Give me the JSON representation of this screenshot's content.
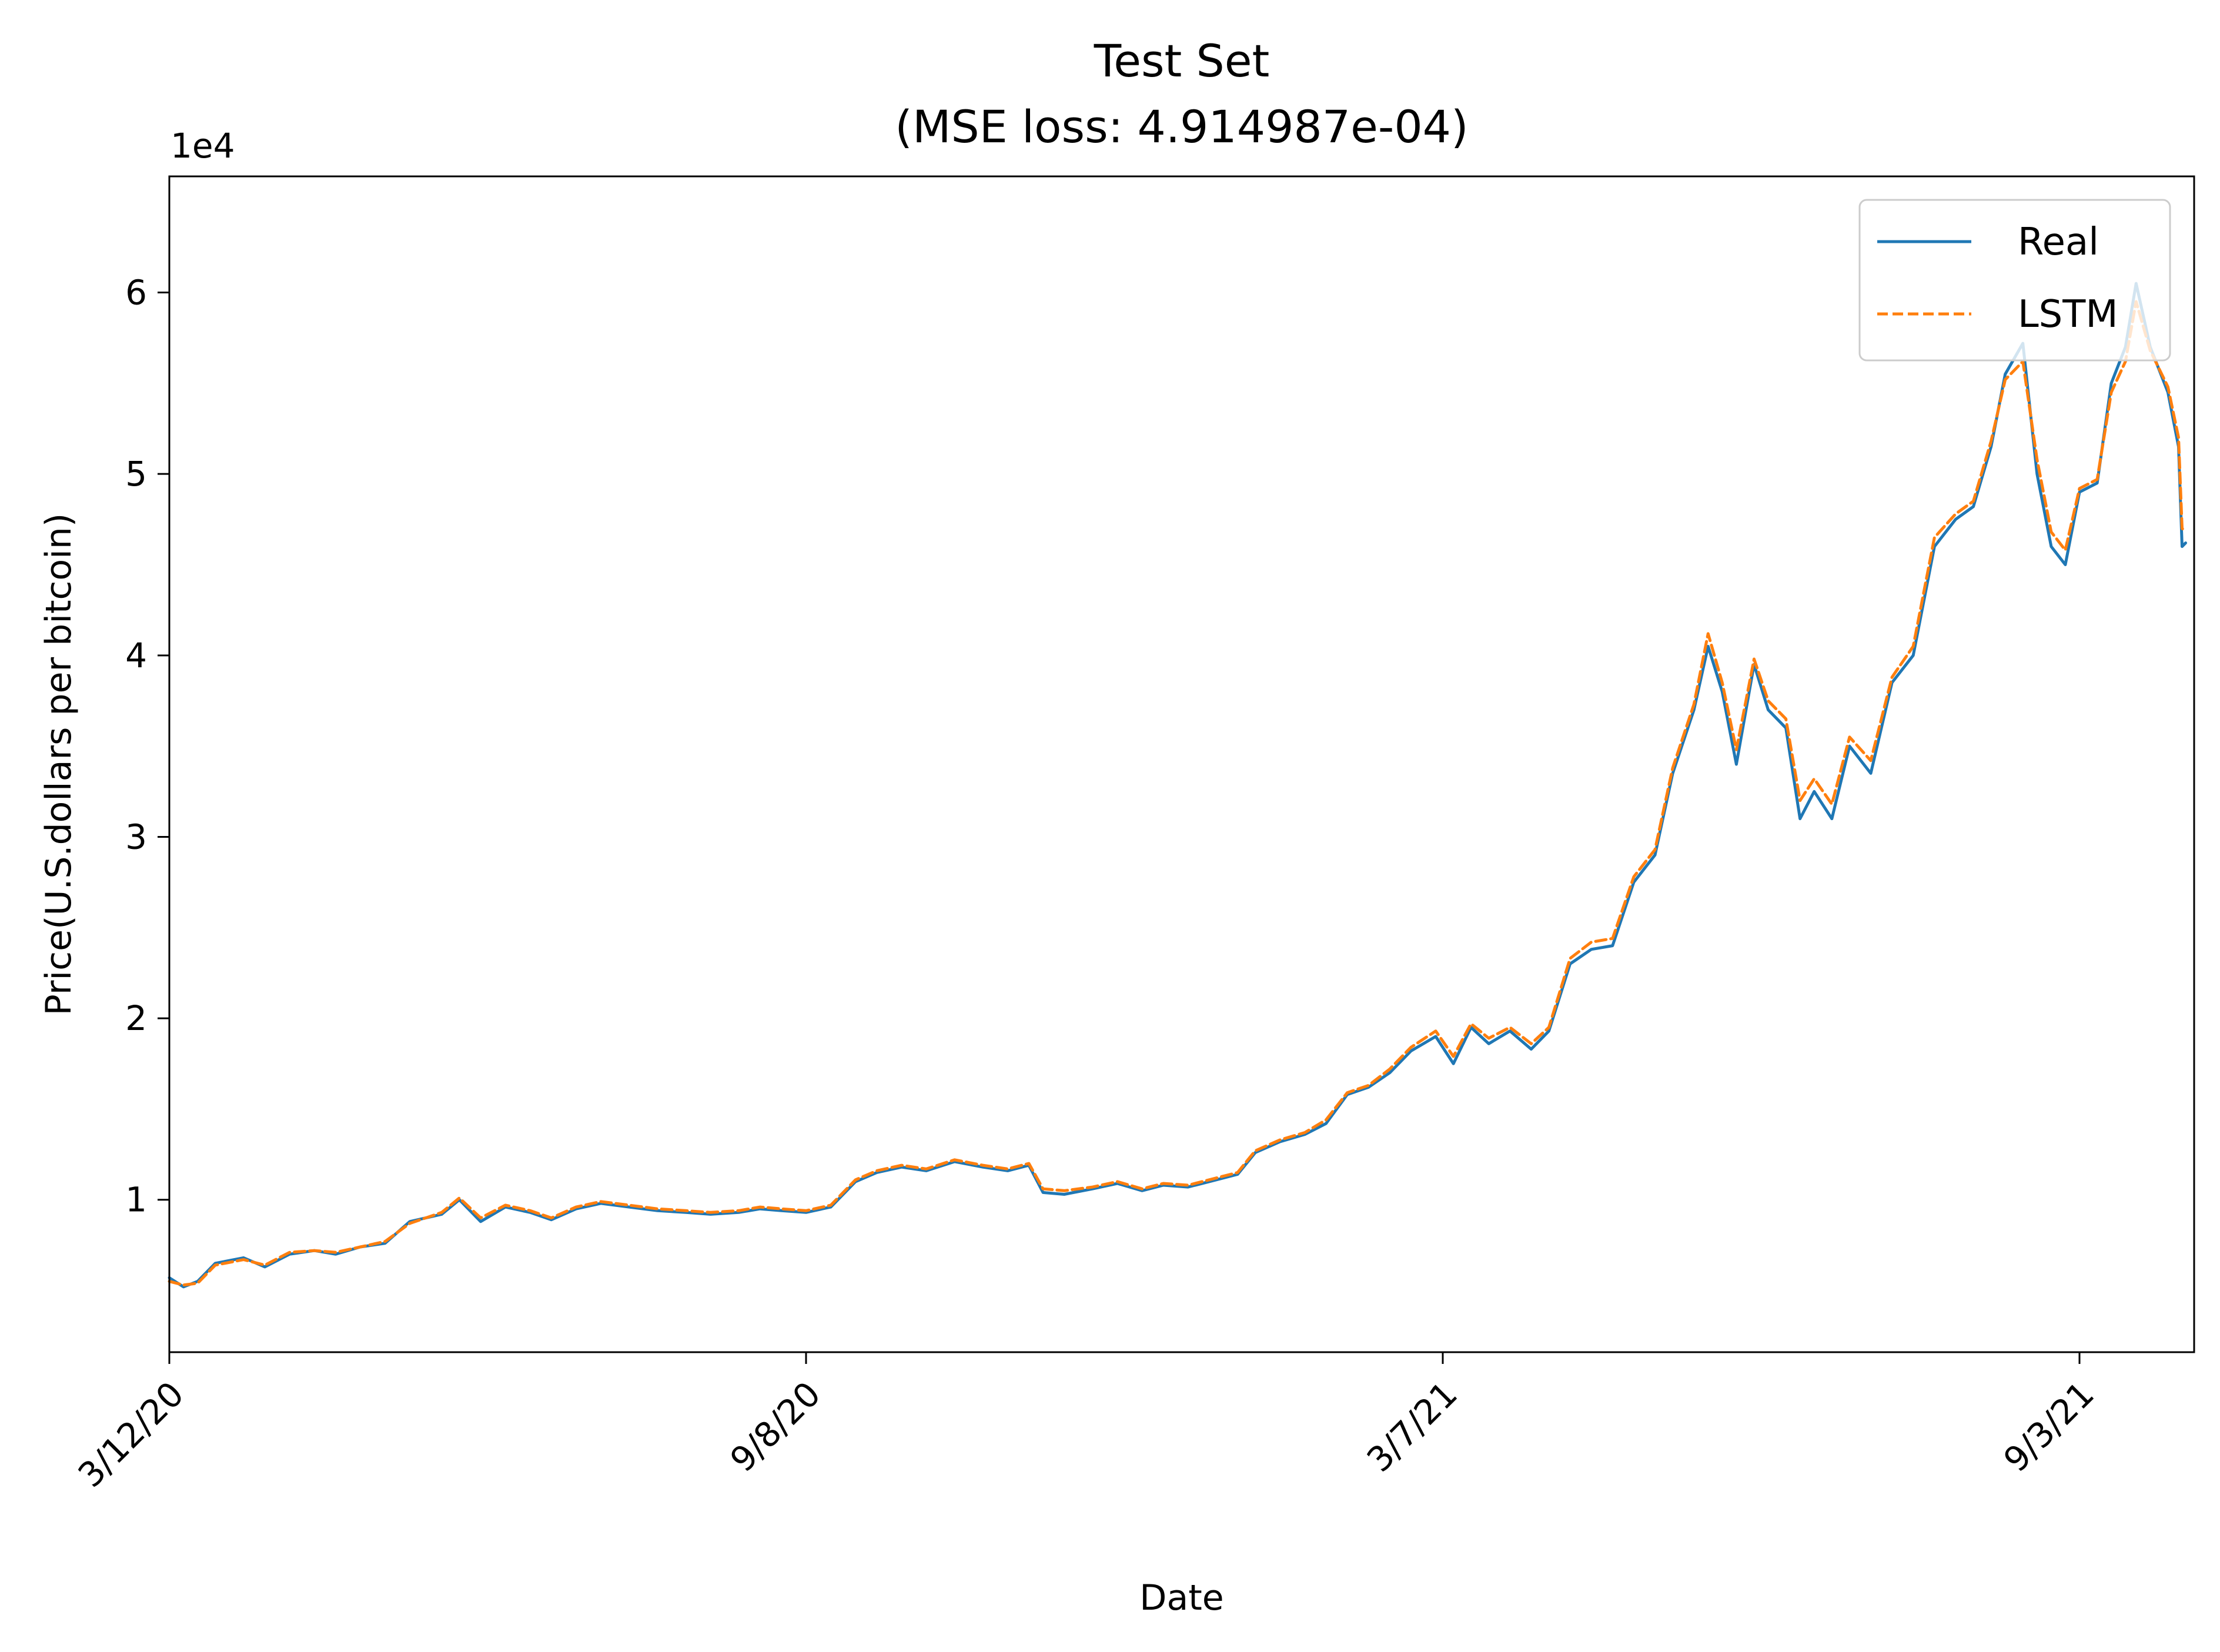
{
  "chart_data": {
    "type": "line",
    "title": "Test Set",
    "subtitle": "(MSE loss: 4.914987e-04)",
    "xlabel": "Date",
    "ylabel": "Price(U.S.dollars per bitcoin)",
    "y_offset_label": "1e4",
    "y_unit": "U.S. dollars per bitcoin (x 1e4)",
    "ylim": [
      0.16,
      6.64
    ],
    "xlim": [
      "2020-03-12",
      "2021-10-03"
    ],
    "grid": false,
    "legend_position": "top-right",
    "x_ticks": [
      {
        "date": "2020-03-12",
        "label": "3/12/20"
      },
      {
        "date": "2020-09-08",
        "label": "9/8/20"
      },
      {
        "date": "2021-03-07",
        "label": "3/7/21"
      },
      {
        "date": "2021-09-03",
        "label": "9/3/21"
      }
    ],
    "y_ticks": [
      {
        "value": 1,
        "label": "1"
      },
      {
        "value": 2,
        "label": "2"
      },
      {
        "value": 3,
        "label": "3"
      },
      {
        "value": 4,
        "label": "4"
      },
      {
        "value": 5,
        "label": "5"
      },
      {
        "value": 6,
        "label": "6"
      }
    ],
    "series": [
      {
        "name": "Real",
        "color": "#1f77b4",
        "style": "solid",
        "points": [
          [
            "2020-03-12",
            0.57
          ],
          [
            "2020-03-16",
            0.52
          ],
          [
            "2020-03-20",
            0.55
          ],
          [
            "2020-03-25",
            0.65
          ],
          [
            "2020-04-02",
            0.68
          ],
          [
            "2020-04-08",
            0.63
          ],
          [
            "2020-04-15",
            0.7
          ],
          [
            "2020-04-22",
            0.72
          ],
          [
            "2020-04-28",
            0.7
          ],
          [
            "2020-05-05",
            0.74
          ],
          [
            "2020-05-12",
            0.76
          ],
          [
            "2020-05-19",
            0.88
          ],
          [
            "2020-05-28",
            0.92
          ],
          [
            "2020-06-02",
            1.0
          ],
          [
            "2020-06-08",
            0.88
          ],
          [
            "2020-06-15",
            0.96
          ],
          [
            "2020-06-22",
            0.93
          ],
          [
            "2020-06-28",
            0.89
          ],
          [
            "2020-07-05",
            0.95
          ],
          [
            "2020-07-12",
            0.98
          ],
          [
            "2020-07-20",
            0.96
          ],
          [
            "2020-07-28",
            0.94
          ],
          [
            "2020-08-05",
            0.93
          ],
          [
            "2020-08-12",
            0.92
          ],
          [
            "2020-08-20",
            0.93
          ],
          [
            "2020-08-26",
            0.95
          ],
          [
            "2020-09-01",
            0.94
          ],
          [
            "2020-09-08",
            0.93
          ],
          [
            "2020-09-15",
            0.96
          ],
          [
            "2020-09-22",
            1.1
          ],
          [
            "2020-09-28",
            1.15
          ],
          [
            "2020-10-05",
            1.18
          ],
          [
            "2020-10-12",
            1.16
          ],
          [
            "2020-10-20",
            1.21
          ],
          [
            "2020-10-28",
            1.18
          ],
          [
            "2020-11-04",
            1.16
          ],
          [
            "2020-11-10",
            1.19
          ],
          [
            "2020-11-14",
            1.04
          ],
          [
            "2020-11-20",
            1.03
          ],
          [
            "2020-11-28",
            1.06
          ],
          [
            "2020-12-05",
            1.09
          ],
          [
            "2020-12-12",
            1.05
          ],
          [
            "2020-12-18",
            1.08
          ],
          [
            "2020-12-25",
            1.07
          ],
          [
            "2021-01-02",
            1.11
          ],
          [
            "2021-01-08",
            1.14
          ],
          [
            "2021-01-13",
            1.26
          ],
          [
            "2021-01-20",
            1.32
          ],
          [
            "2021-01-27",
            1.36
          ],
          [
            "2021-02-02",
            1.42
          ],
          [
            "2021-02-08",
            1.58
          ],
          [
            "2021-02-14",
            1.62
          ],
          [
            "2021-02-20",
            1.7
          ],
          [
            "2021-02-26",
            1.82
          ],
          [
            "2021-03-05",
            1.9
          ],
          [
            "2021-03-10",
            1.75
          ],
          [
            "2021-03-15",
            1.95
          ],
          [
            "2021-03-20",
            1.86
          ],
          [
            "2021-03-26",
            1.93
          ],
          [
            "2021-04-01",
            1.83
          ],
          [
            "2021-04-06",
            1.93
          ],
          [
            "2021-04-12",
            2.3
          ],
          [
            "2021-04-18",
            2.38
          ],
          [
            "2021-04-24",
            2.4
          ],
          [
            "2021-04-30",
            2.75
          ],
          [
            "2021-05-06",
            2.9
          ],
          [
            "2021-05-11",
            3.35
          ],
          [
            "2021-05-17",
            3.7
          ],
          [
            "2021-05-21",
            4.05
          ],
          [
            "2021-05-25",
            3.8
          ],
          [
            "2021-05-29",
            3.4
          ],
          [
            "2021-06-03",
            3.95
          ],
          [
            "2021-06-07",
            3.7
          ],
          [
            "2021-06-12",
            3.6
          ],
          [
            "2021-06-16",
            3.1
          ],
          [
            "2021-06-20",
            3.25
          ],
          [
            "2021-06-25",
            3.1
          ],
          [
            "2021-06-30",
            3.5
          ],
          [
            "2021-07-06",
            3.35
          ],
          [
            "2021-07-12",
            3.85
          ],
          [
            "2021-07-18",
            4.0
          ],
          [
            "2021-07-24",
            4.6
          ],
          [
            "2021-07-30",
            4.75
          ],
          [
            "2021-08-04",
            4.82
          ],
          [
            "2021-08-09",
            5.15
          ],
          [
            "2021-08-13",
            5.55
          ],
          [
            "2021-08-18",
            5.72
          ],
          [
            "2021-08-22",
            5.0
          ],
          [
            "2021-08-26",
            4.6
          ],
          [
            "2021-08-30",
            4.5
          ],
          [
            "2021-09-03",
            4.9
          ],
          [
            "2021-09-08",
            4.95
          ],
          [
            "2021-09-12",
            5.5
          ],
          [
            "2021-09-16",
            5.7
          ],
          [
            "2021-09-19",
            6.05
          ],
          [
            "2021-09-23",
            5.7
          ],
          [
            "2021-09-28",
            5.45
          ],
          [
            "2021-10-01",
            5.15
          ],
          [
            "2021-10-02",
            4.6
          ],
          [
            "2021-10-03",
            4.62
          ]
        ]
      },
      {
        "name": "LSTM",
        "color": "#ff7f0e",
        "style": "dashed",
        "points": [
          [
            "2020-03-12",
            0.55
          ],
          [
            "2020-03-16",
            0.53
          ],
          [
            "2020-03-20",
            0.54
          ],
          [
            "2020-03-25",
            0.64
          ],
          [
            "2020-04-02",
            0.67
          ],
          [
            "2020-04-08",
            0.64
          ],
          [
            "2020-04-15",
            0.71
          ],
          [
            "2020-04-22",
            0.72
          ],
          [
            "2020-04-28",
            0.71
          ],
          [
            "2020-05-05",
            0.74
          ],
          [
            "2020-05-12",
            0.77
          ],
          [
            "2020-05-19",
            0.87
          ],
          [
            "2020-05-28",
            0.93
          ],
          [
            "2020-06-02",
            1.01
          ],
          [
            "2020-06-08",
            0.9
          ],
          [
            "2020-06-15",
            0.97
          ],
          [
            "2020-06-22",
            0.94
          ],
          [
            "2020-06-28",
            0.9
          ],
          [
            "2020-07-05",
            0.96
          ],
          [
            "2020-07-12",
            0.99
          ],
          [
            "2020-07-20",
            0.97
          ],
          [
            "2020-07-28",
            0.95
          ],
          [
            "2020-08-05",
            0.94
          ],
          [
            "2020-08-12",
            0.93
          ],
          [
            "2020-08-20",
            0.94
          ],
          [
            "2020-08-26",
            0.96
          ],
          [
            "2020-09-01",
            0.95
          ],
          [
            "2020-09-08",
            0.94
          ],
          [
            "2020-09-15",
            0.97
          ],
          [
            "2020-09-22",
            1.11
          ],
          [
            "2020-09-28",
            1.16
          ],
          [
            "2020-10-05",
            1.19
          ],
          [
            "2020-10-12",
            1.17
          ],
          [
            "2020-10-20",
            1.22
          ],
          [
            "2020-10-28",
            1.19
          ],
          [
            "2020-11-04",
            1.17
          ],
          [
            "2020-11-10",
            1.2
          ],
          [
            "2020-11-14",
            1.06
          ],
          [
            "2020-11-20",
            1.05
          ],
          [
            "2020-11-28",
            1.07
          ],
          [
            "2020-12-05",
            1.1
          ],
          [
            "2020-12-12",
            1.06
          ],
          [
            "2020-12-18",
            1.09
          ],
          [
            "2020-12-25",
            1.08
          ],
          [
            "2021-01-02",
            1.12
          ],
          [
            "2021-01-08",
            1.15
          ],
          [
            "2021-01-13",
            1.27
          ],
          [
            "2021-01-20",
            1.33
          ],
          [
            "2021-01-27",
            1.37
          ],
          [
            "2021-02-02",
            1.44
          ],
          [
            "2021-02-08",
            1.59
          ],
          [
            "2021-02-14",
            1.63
          ],
          [
            "2021-02-20",
            1.72
          ],
          [
            "2021-02-26",
            1.84
          ],
          [
            "2021-03-05",
            1.93
          ],
          [
            "2021-03-10",
            1.79
          ],
          [
            "2021-03-15",
            1.97
          ],
          [
            "2021-03-20",
            1.89
          ],
          [
            "2021-03-26",
            1.95
          ],
          [
            "2021-04-01",
            1.86
          ],
          [
            "2021-04-06",
            1.95
          ],
          [
            "2021-04-12",
            2.33
          ],
          [
            "2021-04-18",
            2.42
          ],
          [
            "2021-04-24",
            2.44
          ],
          [
            "2021-04-30",
            2.78
          ],
          [
            "2021-05-06",
            2.93
          ],
          [
            "2021-05-11",
            3.38
          ],
          [
            "2021-05-17",
            3.73
          ],
          [
            "2021-05-21",
            4.12
          ],
          [
            "2021-05-25",
            3.85
          ],
          [
            "2021-05-29",
            3.48
          ],
          [
            "2021-06-03",
            3.98
          ],
          [
            "2021-06-07",
            3.75
          ],
          [
            "2021-06-12",
            3.65
          ],
          [
            "2021-06-16",
            3.2
          ],
          [
            "2021-06-20",
            3.32
          ],
          [
            "2021-06-25",
            3.18
          ],
          [
            "2021-06-30",
            3.55
          ],
          [
            "2021-07-06",
            3.42
          ],
          [
            "2021-07-12",
            3.88
          ],
          [
            "2021-07-18",
            4.05
          ],
          [
            "2021-07-24",
            4.65
          ],
          [
            "2021-07-30",
            4.78
          ],
          [
            "2021-08-04",
            4.85
          ],
          [
            "2021-08-09",
            5.18
          ],
          [
            "2021-08-13",
            5.52
          ],
          [
            "2021-08-18",
            5.62
          ],
          [
            "2021-08-22",
            5.08
          ],
          [
            "2021-08-26",
            4.68
          ],
          [
            "2021-08-30",
            4.58
          ],
          [
            "2021-09-03",
            4.92
          ],
          [
            "2021-09-08",
            4.97
          ],
          [
            "2021-09-12",
            5.45
          ],
          [
            "2021-09-16",
            5.62
          ],
          [
            "2021-09-19",
            5.95
          ],
          [
            "2021-09-23",
            5.68
          ],
          [
            "2021-09-28",
            5.48
          ],
          [
            "2021-10-01",
            5.2
          ],
          [
            "2021-10-02",
            4.7
          ],
          [
            "2021-10-03",
            4.68
          ]
        ]
      }
    ]
  }
}
